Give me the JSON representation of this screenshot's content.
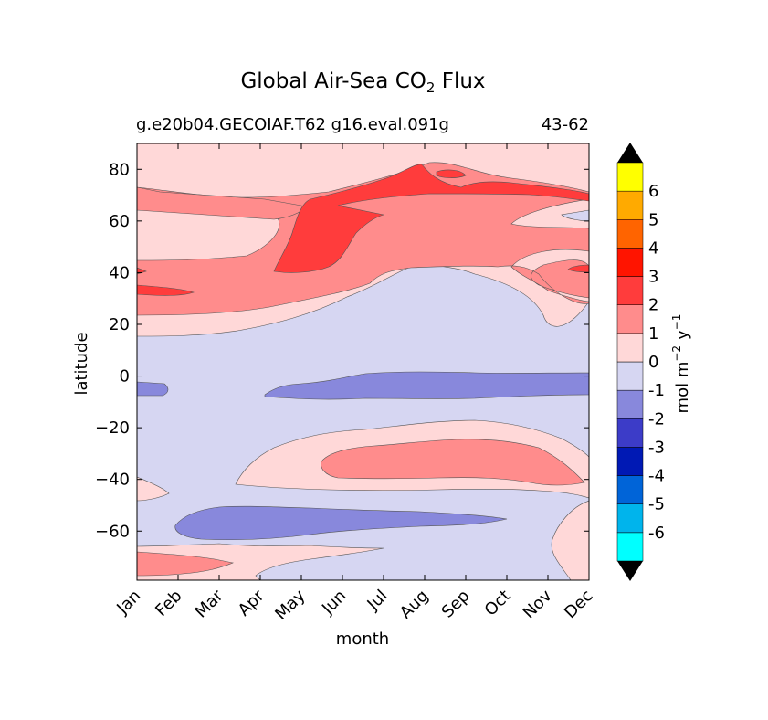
{
  "chart_data": {
    "type": "heatmap",
    "title": "Global Air-Sea CO",
    "title_subscript": "2",
    "title_suffix": "Flux",
    "subtitle_left": "g.e20b04.GECOIAF.T62 g16.eval.091g",
    "subtitle_right": "43-62",
    "xlabel": "month",
    "ylabel": "latitude",
    "x_ticks": [
      "Jan",
      "Feb",
      "Mar",
      "Apr",
      "May",
      "Jun",
      "Jul",
      "Aug",
      "Sep",
      "Oct",
      "Nov",
      "Dec"
    ],
    "y_ticks": [
      "80",
      "60",
      "40",
      "20",
      "0",
      "−20",
      "−40",
      "−60"
    ],
    "y_tick_values": [
      80,
      60,
      40,
      20,
      0,
      -20,
      -40,
      -60
    ],
    "ylim": [
      -79,
      90
    ],
    "colorbar": {
      "label": "mol m",
      "label_sup1": "−2",
      "label_mid": "y",
      "label_sup2": "−1",
      "levels": [
        -7,
        -6,
        -5,
        -4,
        -3,
        -2,
        -1,
        0,
        1,
        2,
        3,
        4,
        5,
        6,
        7
      ],
      "tick_labels": [
        "-6",
        "-5",
        "-4",
        "-3",
        "-2",
        "-1",
        "0",
        "1",
        "2",
        "3",
        "4",
        "5",
        "6"
      ],
      "colors": [
        "#00ffff",
        "#00b4ec",
        "#0064d8",
        "#0019b4",
        "#3c3cc8",
        "#8888dc",
        "#d6d6f2",
        "#ffd8d8",
        "#ff8c8c",
        "#ff3c3c",
        "#ff1400",
        "#ff6400",
        "#ffaa00",
        "#ffff00"
      ],
      "extend": "both"
    },
    "zones_description_levels": {
      "nh_high_band": 1,
      "arctic": 0,
      "nh_subpolar_sink": -1,
      "equatorial_source": 0,
      "southern_sink": 1,
      "southern_ocean_source": -1
    },
    "grid": false
  }
}
